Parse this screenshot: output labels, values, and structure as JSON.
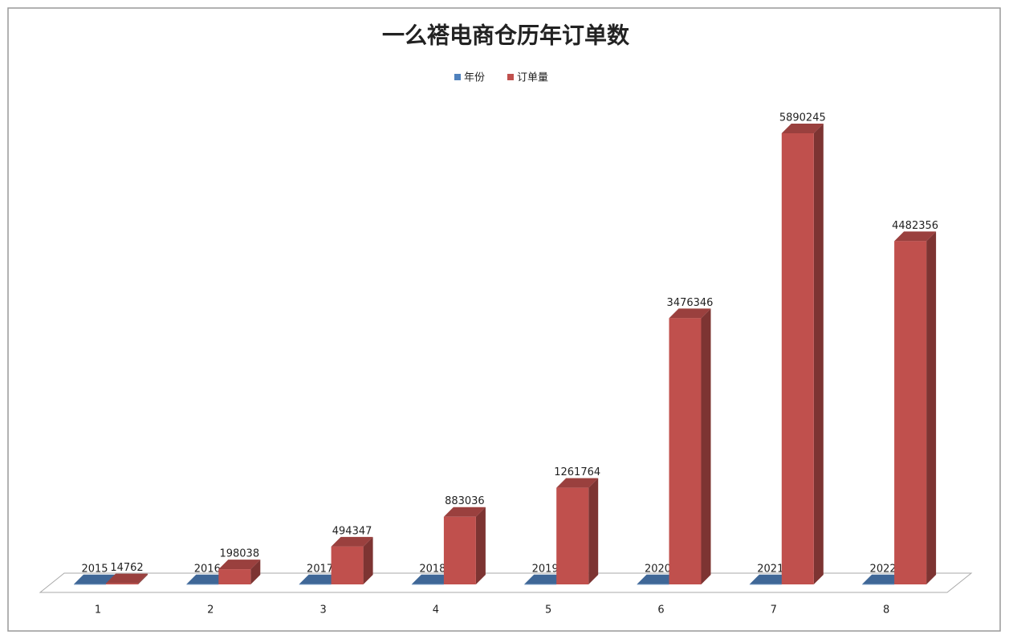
{
  "chart_data": {
    "type": "bar3d",
    "title": "一么褡电商仓历年订单数",
    "categories": [
      "1",
      "2",
      "3",
      "4",
      "5",
      "6",
      "7",
      "8"
    ],
    "series": [
      {
        "name": "年份",
        "color": "#4f81bd",
        "values": [
          2015,
          2016,
          2017,
          2018,
          2019,
          2020,
          2021,
          2022
        ]
      },
      {
        "name": "订单量",
        "color": "#c0504d",
        "values": [
          14762,
          198038,
          494347,
          883036,
          1261764,
          3476346,
          5890245,
          4482356
        ]
      }
    ]
  }
}
